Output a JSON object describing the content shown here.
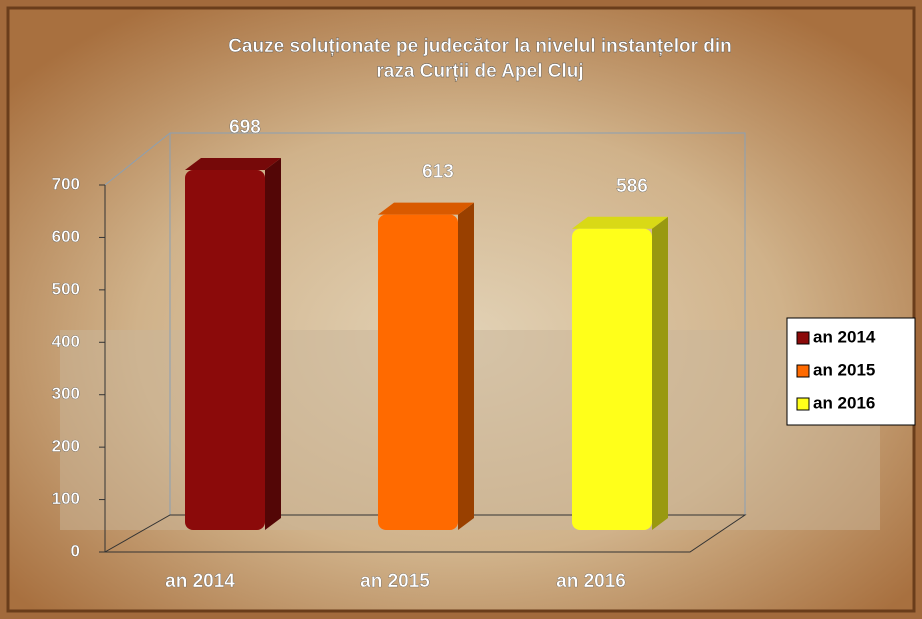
{
  "chart_data": {
    "type": "bar3d",
    "title": [
      "Cauze soluționate pe judecător la nivelul instanțelor din",
      "raza Curții de Apel Cluj"
    ],
    "categories": [
      "an 2014",
      "an 2015",
      "an 2016"
    ],
    "values": [
      698,
      613,
      586
    ],
    "colors": [
      "#8b0a0a",
      "#ff6a00",
      "#ffff1a"
    ],
    "ylim": [
      0,
      700
    ],
    "yticks": [
      0,
      100,
      200,
      300,
      400,
      500,
      600,
      700
    ],
    "legend": "right"
  }
}
